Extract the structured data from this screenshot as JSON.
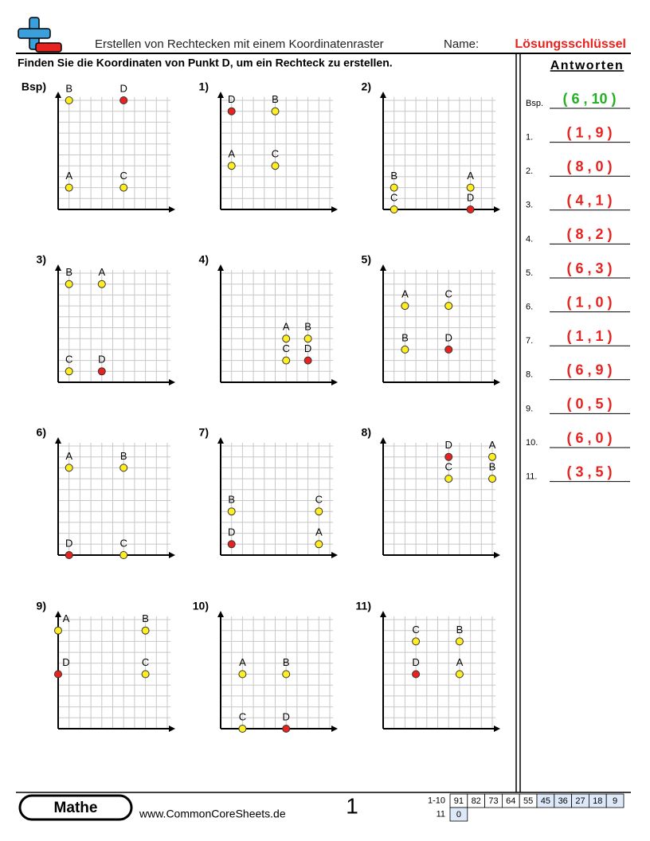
{
  "header": {
    "title": "Erstellen von Rechtecken mit einem Koordinatenraster",
    "name_label": "Name:",
    "name_value": "Lösungsschlüssel"
  },
  "instructions": "Finden Sie die Koordinaten von Punkt D, um ein Rechteck zu erstellen.",
  "point_colors": {
    "given": "#ffee22",
    "answer": "#e8231f"
  },
  "problems": [
    {
      "label": "Bsp)",
      "points": [
        {
          "name": "A",
          "x": 1,
          "y": 2
        },
        {
          "name": "B",
          "x": 1,
          "y": 10
        },
        {
          "name": "C",
          "x": 6,
          "y": 2
        },
        {
          "name": "D",
          "x": 6,
          "y": 10
        }
      ]
    },
    {
      "label": "1)",
      "points": [
        {
          "name": "A",
          "x": 1,
          "y": 4
        },
        {
          "name": "B",
          "x": 5,
          "y": 9
        },
        {
          "name": "C",
          "x": 5,
          "y": 4
        },
        {
          "name": "D",
          "x": 1,
          "y": 9
        }
      ]
    },
    {
      "label": "2)",
      "points": [
        {
          "name": "A",
          "x": 8,
          "y": 2
        },
        {
          "name": "B",
          "x": 1,
          "y": 2
        },
        {
          "name": "C",
          "x": 1,
          "y": 0
        },
        {
          "name": "D",
          "x": 8,
          "y": 0
        }
      ]
    },
    {
      "label": "3)",
      "points": [
        {
          "name": "A",
          "x": 4,
          "y": 9
        },
        {
          "name": "B",
          "x": 1,
          "y": 9
        },
        {
          "name": "C",
          "x": 1,
          "y": 1
        },
        {
          "name": "D",
          "x": 4,
          "y": 1
        }
      ]
    },
    {
      "label": "4)",
      "points": [
        {
          "name": "A",
          "x": 6,
          "y": 4
        },
        {
          "name": "B",
          "x": 8,
          "y": 4
        },
        {
          "name": "C",
          "x": 6,
          "y": 2
        },
        {
          "name": "D",
          "x": 8,
          "y": 2
        }
      ]
    },
    {
      "label": "5)",
      "points": [
        {
          "name": "A",
          "x": 2,
          "y": 7
        },
        {
          "name": "B",
          "x": 2,
          "y": 3
        },
        {
          "name": "C",
          "x": 6,
          "y": 7
        },
        {
          "name": "D",
          "x": 6,
          "y": 3
        }
      ]
    },
    {
      "label": "6)",
      "points": [
        {
          "name": "A",
          "x": 1,
          "y": 8
        },
        {
          "name": "B",
          "x": 6,
          "y": 8
        },
        {
          "name": "C",
          "x": 6,
          "y": 0
        },
        {
          "name": "D",
          "x": 1,
          "y": 0
        }
      ]
    },
    {
      "label": "7)",
      "points": [
        {
          "name": "A",
          "x": 9,
          "y": 1
        },
        {
          "name": "B",
          "x": 1,
          "y": 4
        },
        {
          "name": "C",
          "x": 9,
          "y": 4
        },
        {
          "name": "D",
          "x": 1,
          "y": 1
        }
      ]
    },
    {
      "label": "8)",
      "points": [
        {
          "name": "A",
          "x": 10,
          "y": 9
        },
        {
          "name": "B",
          "x": 10,
          "y": 7
        },
        {
          "name": "C",
          "x": 6,
          "y": 7
        },
        {
          "name": "D",
          "x": 6,
          "y": 9
        }
      ]
    },
    {
      "label": "9)",
      "points": [
        {
          "name": "A",
          "x": 0,
          "y": 9
        },
        {
          "name": "B",
          "x": 8,
          "y": 9
        },
        {
          "name": "C",
          "x": 8,
          "y": 5
        },
        {
          "name": "D",
          "x": 0,
          "y": 5
        }
      ]
    },
    {
      "label": "10)",
      "points": [
        {
          "name": "A",
          "x": 2,
          "y": 5
        },
        {
          "name": "B",
          "x": 6,
          "y": 5
        },
        {
          "name": "C",
          "x": 2,
          "y": 0
        },
        {
          "name": "D",
          "x": 6,
          "y": 0
        }
      ]
    },
    {
      "label": "11)",
      "points": [
        {
          "name": "A",
          "x": 7,
          "y": 5
        },
        {
          "name": "B",
          "x": 7,
          "y": 8
        },
        {
          "name": "C",
          "x": 3,
          "y": 8
        },
        {
          "name": "D",
          "x": 3,
          "y": 5
        }
      ]
    }
  ],
  "answers": {
    "title": "Antworten",
    "items": [
      {
        "label": "Bsp.",
        "value": "( 6 , 10 )"
      },
      {
        "label": "1.",
        "value": "( 1 , 9 )"
      },
      {
        "label": "2.",
        "value": "( 8 , 0 )"
      },
      {
        "label": "3.",
        "value": "( 4 , 1 )"
      },
      {
        "label": "4.",
        "value": "( 8 , 2 )"
      },
      {
        "label": "5.",
        "value": "( 6 , 3 )"
      },
      {
        "label": "6.",
        "value": "( 1 , 0 )"
      },
      {
        "label": "7.",
        "value": "( 1 , 1 )"
      },
      {
        "label": "8.",
        "value": "( 6 , 9 )"
      },
      {
        "label": "9.",
        "value": "( 0 , 5 )"
      },
      {
        "label": "10.",
        "value": "( 6 , 0 )"
      },
      {
        "label": "11.",
        "value": "( 3 , 5 )"
      }
    ]
  },
  "footer": {
    "brand": "Mathe",
    "url": "www.CommonCoreSheets.de",
    "page": 1,
    "score_rows": [
      {
        "label": "1-10",
        "values": [
          91,
          82,
          73,
          64,
          55,
          45,
          36,
          27,
          18,
          9
        ]
      },
      {
        "label": "11",
        "values": [
          0
        ]
      }
    ]
  }
}
